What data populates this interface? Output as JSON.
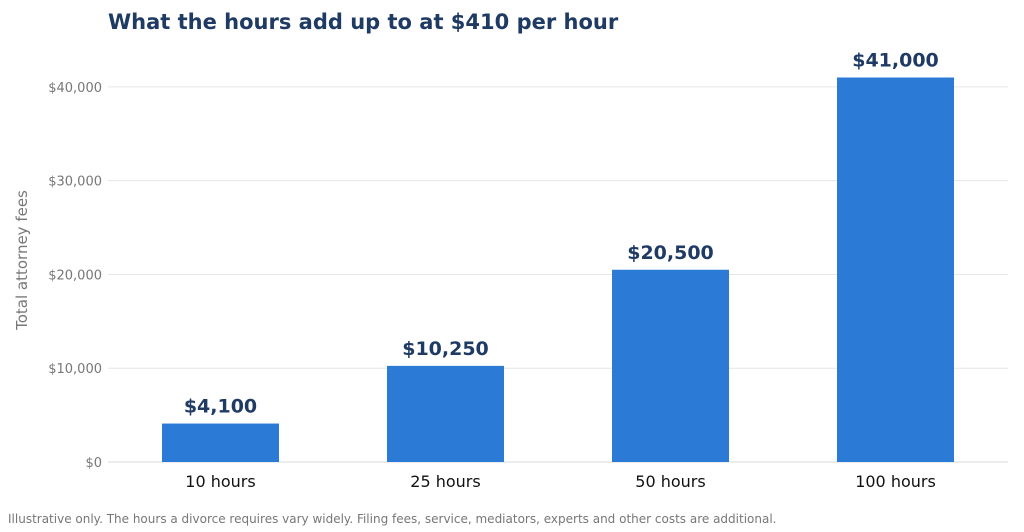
{
  "chart_data": {
    "type": "bar",
    "title": "What the hours add up to at $410 per hour",
    "categories": [
      "10 hours",
      "25 hours",
      "50 hours",
      "100 hours"
    ],
    "values": [
      4100,
      10250,
      20500,
      41000
    ],
    "value_labels": [
      "$4,100",
      "$10,250",
      "$20,500",
      "$41,000"
    ],
    "ylabel": "Total attorney fees",
    "xlabel": "",
    "ylim": [
      0,
      45000
    ],
    "yticks": [
      0,
      10000,
      20000,
      30000,
      40000
    ],
    "ytick_labels": [
      "$0",
      "$10,000",
      "$20,000",
      "$30,000",
      "$40,000"
    ],
    "grid": true,
    "colors": {
      "bar": "#2a7ad6",
      "label": "#1f3a63",
      "grid": "#e3e6ea",
      "axis_text": "#777777"
    }
  },
  "footnote": "Illustrative only. The hours a divorce requires vary widely. Filing fees, service, mediators, experts and other costs are additional."
}
